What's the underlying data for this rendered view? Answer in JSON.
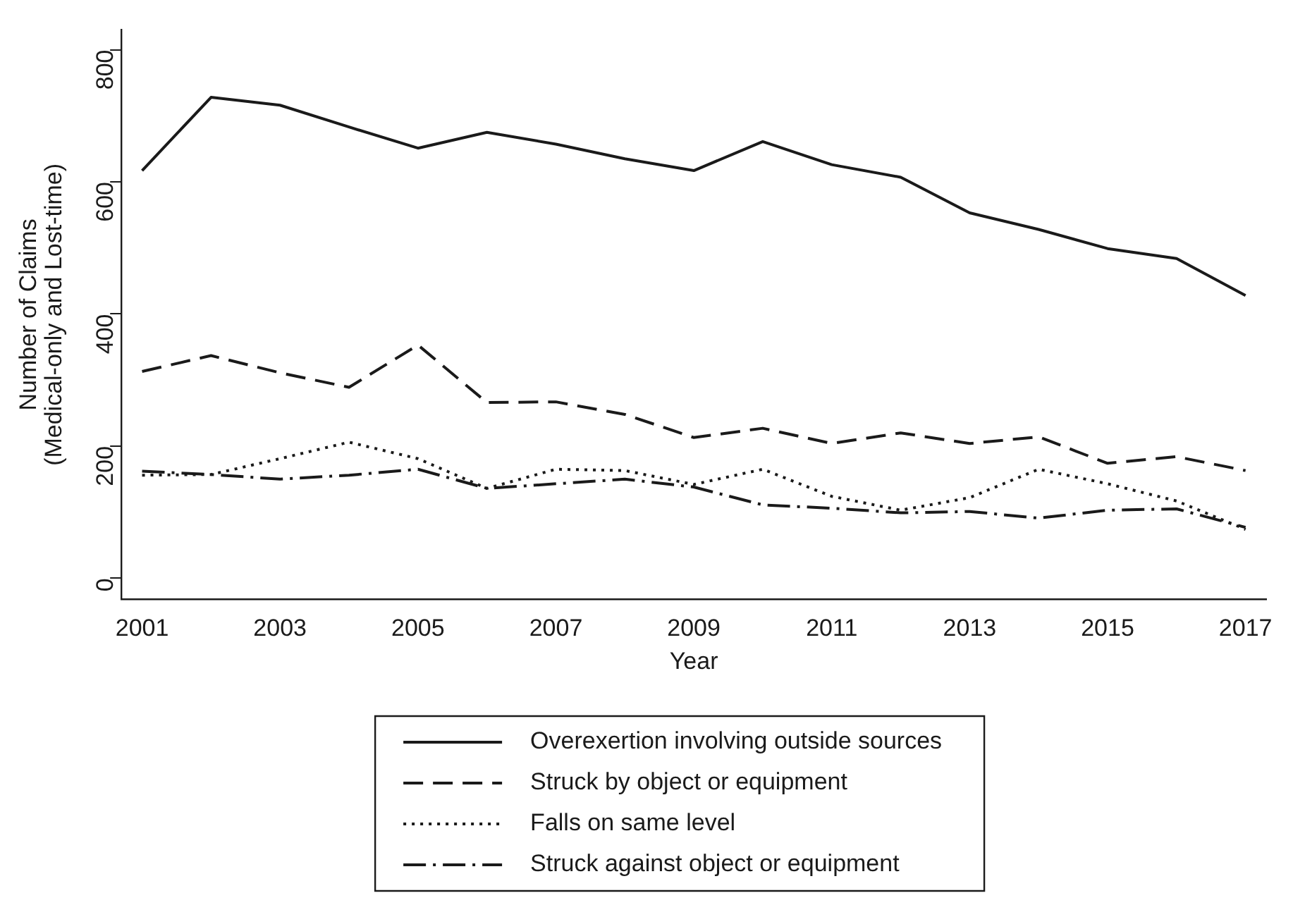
{
  "chart_data": {
    "type": "line",
    "xlabel": "Year",
    "ylabel": "Number of Claims\n(Medical-only and Lost-time)",
    "x": [
      2001,
      2002,
      2003,
      2004,
      2005,
      2006,
      2007,
      2008,
      2009,
      2010,
      2011,
      2012,
      2013,
      2014,
      2015,
      2016,
      2017
    ],
    "series": [
      {
        "name": "Overexertion involving outside sources",
        "color": "#1a1a1a",
        "line_style": "solid",
        "values": [
          617,
          728,
          716,
          683,
          651,
          675,
          657,
          635,
          617,
          661,
          626,
          607,
          553,
          528,
          499,
          484,
          428
        ]
      },
      {
        "name": "Struck by object or equipment",
        "color": "#1a1a1a",
        "line_style": "dashed",
        "values": [
          313,
          337,
          311,
          289,
          353,
          266,
          267,
          248,
          213,
          227,
          204,
          220,
          204,
          214,
          174,
          184,
          163
        ]
      },
      {
        "name": "Falls on same level",
        "color": "#1a1a1a",
        "line_style": "dotted",
        "values": [
          156,
          157,
          181,
          206,
          181,
          136,
          165,
          163,
          142,
          165,
          124,
          103,
          122,
          165,
          143,
          117,
          74
        ]
      },
      {
        "name": "Struck against object or equipment",
        "color": "#1a1a1a",
        "line_style": "dashdot",
        "values": [
          162,
          157,
          150,
          156,
          165,
          136,
          143,
          150,
          138,
          111,
          106,
          99,
          101,
          91,
          103,
          105,
          77
        ]
      }
    ],
    "xlim": [
      2000.7,
      2017.3
    ],
    "xticks": [
      2001,
      2003,
      2005,
      2007,
      2009,
      2011,
      2013,
      2015,
      2017
    ],
    "ylim": [
      -32,
      830
    ],
    "yticks": [
      0,
      200,
      400,
      600,
      800
    ],
    "grid": false,
    "legend": "bottom",
    "marker": "none"
  }
}
